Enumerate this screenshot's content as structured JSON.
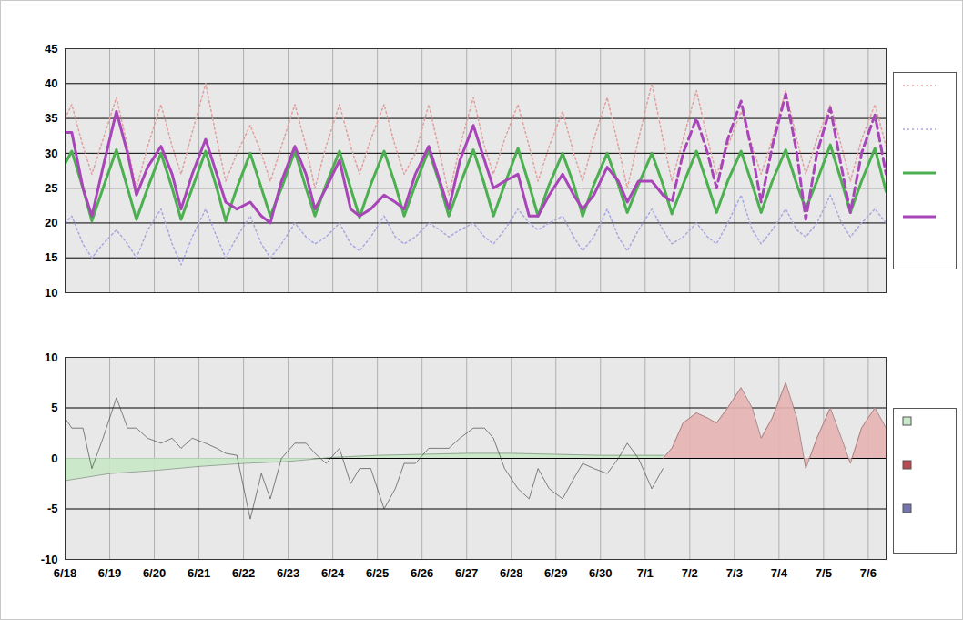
{
  "chart_data": [
    {
      "type": "line",
      "x": [
        0,
        0.15,
        0.4,
        0.6,
        0.85,
        1.15,
        1.4,
        1.6,
        1.85,
        2.15,
        2.4,
        2.6,
        2.85,
        3.15,
        3.4,
        3.6,
        3.85,
        4.15,
        4.4,
        4.6,
        4.85,
        5.15,
        5.4,
        5.6,
        5.85,
        6.15,
        6.4,
        6.6,
        6.85,
        7.15,
        7.4,
        7.6,
        7.85,
        8.15,
        8.4,
        8.6,
        8.85,
        9.15,
        9.4,
        9.6,
        9.85,
        10.15,
        10.4,
        10.6,
        10.85,
        11.15,
        11.4,
        11.6,
        11.85,
        12.15,
        12.4,
        12.6,
        12.85,
        13.15,
        13.4,
        13.6,
        13.85,
        14.15,
        14.4,
        14.6,
        14.85,
        15.15,
        15.4,
        15.6,
        15.85,
        16.15,
        16.4,
        16.6,
        16.85,
        17.15,
        17.4,
        17.6,
        17.85,
        18.15,
        18.4
      ],
      "xlim": [
        0,
        18.4
      ],
      "xticks": [
        {
          "value": 0,
          "label": "6/18"
        },
        {
          "value": 1,
          "label": "6/19"
        },
        {
          "value": 2,
          "label": "6/20"
        },
        {
          "value": 3,
          "label": "6/21"
        },
        {
          "value": 4,
          "label": "6/22"
        },
        {
          "value": 5,
          "label": "6/23"
        },
        {
          "value": 6,
          "label": "6/24"
        },
        {
          "value": 7,
          "label": "6/25"
        },
        {
          "value": 8,
          "label": "6/26"
        },
        {
          "value": 9,
          "label": "6/27"
        },
        {
          "value": 10,
          "label": "6/28"
        },
        {
          "value": 11,
          "label": "6/29"
        },
        {
          "value": 12,
          "label": "6/30"
        },
        {
          "value": 13,
          "label": "7/1"
        },
        {
          "value": 14,
          "label": "7/2"
        },
        {
          "value": 15,
          "label": "7/3"
        },
        {
          "value": 16,
          "label": "7/4"
        },
        {
          "value": 17,
          "label": "7/5"
        },
        {
          "value": 18,
          "label": "7/6"
        }
      ],
      "ylim": [
        10,
        45
      ],
      "yticks": [
        10,
        15,
        20,
        25,
        30,
        35,
        40,
        45
      ],
      "grid": true,
      "legend": "right",
      "tick_labels": "y",
      "series": [
        {
          "color": "#e0a0a0",
          "line_style": "dotted",
          "values": [
            35,
            37,
            31,
            27,
            32,
            38,
            31,
            25,
            31,
            37,
            31,
            27,
            33,
            40,
            32,
            26,
            30,
            34,
            30,
            26,
            31,
            37,
            31,
            25,
            31,
            37,
            31,
            27,
            32,
            37,
            31,
            27,
            30,
            37,
            30,
            24,
            31,
            38,
            31,
            27,
            32,
            37,
            31,
            26,
            31,
            36,
            30,
            26,
            32,
            38,
            31,
            25,
            32,
            40,
            32,
            26,
            32,
            39,
            32,
            27,
            31,
            36,
            31,
            27,
            32,
            39,
            32,
            27,
            32,
            37,
            31,
            26,
            32,
            37,
            31
          ]
        },
        {
          "color": "#a8a8e0",
          "line_style": "dotted",
          "values": [
            20,
            21,
            17,
            15,
            17,
            19,
            17,
            15,
            19,
            22,
            17,
            14,
            18,
            22,
            18,
            15,
            18,
            21,
            17,
            15,
            17,
            20,
            18,
            17,
            18,
            20,
            17,
            16,
            18,
            21,
            18,
            17,
            18,
            20,
            19,
            18,
            19,
            20,
            18,
            17,
            19,
            22,
            20,
            19,
            20,
            21,
            18,
            16,
            18,
            22,
            18,
            16,
            19,
            22,
            19,
            17,
            18,
            20,
            18,
            17,
            20,
            24,
            19,
            17,
            19,
            22,
            19,
            18,
            20,
            24,
            20,
            18,
            20,
            22,
            20
          ]
        },
        {
          "color": "#4caf50",
          "line_style": "solid",
          "values": [
            28.5,
            30.3,
            25,
            20.3,
            25,
            30.5,
            25,
            20.5,
            25,
            30,
            25,
            20.5,
            25,
            30.3,
            25,
            20.3,
            25,
            30,
            25,
            21,
            25,
            30.3,
            25,
            21,
            25.5,
            30.3,
            25,
            20.8,
            25.5,
            30.3,
            25.5,
            21,
            25.5,
            30.5,
            25.5,
            21,
            25.5,
            30.5,
            25.5,
            21,
            25.5,
            30.7,
            25.5,
            21,
            25.5,
            30,
            25.5,
            21,
            25.5,
            30,
            25.5,
            21.5,
            25.5,
            30,
            25.5,
            21.3,
            25.5,
            30.3,
            25.5,
            21.5,
            26,
            30.3,
            25.5,
            21.5,
            26,
            30.5,
            25.5,
            22,
            26,
            31.2,
            26,
            21.5,
            26,
            30.7,
            24.5
          ]
        },
        {
          "color": "#a845b8",
          "line_style": "solid",
          "values": [
            33,
            33,
            25,
            21,
            28,
            36,
            30,
            24,
            28,
            31,
            27,
            22,
            27,
            32,
            27,
            23,
            22,
            23,
            21,
            20,
            26,
            31,
            27,
            22,
            25,
            29,
            22,
            21,
            22,
            24,
            23,
            22,
            27,
            31,
            26,
            22,
            29,
            34,
            29,
            25,
            26,
            27,
            21,
            21,
            24,
            27,
            24,
            22,
            24,
            28,
            26,
            23,
            26,
            26,
            24,
            null,
            null,
            null,
            null,
            null,
            null,
            null,
            null,
            null,
            null,
            null,
            null,
            null,
            null,
            null,
            null,
            null,
            null,
            null,
            null
          ]
        },
        {
          "color": "#a845b8",
          "line_style": "dashed",
          "values": [
            null,
            null,
            null,
            null,
            null,
            null,
            null,
            null,
            null,
            null,
            null,
            null,
            null,
            null,
            null,
            null,
            null,
            null,
            null,
            null,
            null,
            null,
            null,
            null,
            null,
            null,
            null,
            null,
            null,
            null,
            null,
            null,
            null,
            null,
            null,
            null,
            null,
            null,
            null,
            null,
            null,
            null,
            null,
            null,
            null,
            null,
            null,
            null,
            null,
            null,
            null,
            null,
            null,
            null,
            24,
            23,
            30,
            35,
            30,
            25,
            32,
            37.5,
            30,
            23,
            31,
            38.5,
            30,
            20.5,
            30,
            36.5,
            28,
            21.5,
            30,
            35.5,
            27
          ]
        }
      ]
    },
    {
      "type": "area",
      "x": [
        0,
        0.15,
        0.4,
        0.6,
        0.85,
        1.15,
        1.4,
        1.6,
        1.85,
        2.15,
        2.4,
        2.6,
        2.85,
        3.15,
        3.4,
        3.6,
        3.85,
        4.15,
        4.4,
        4.6,
        4.85,
        5.15,
        5.4,
        5.6,
        5.85,
        6.15,
        6.4,
        6.6,
        6.85,
        7.15,
        7.4,
        7.6,
        7.85,
        8.15,
        8.4,
        8.6,
        8.85,
        9.15,
        9.4,
        9.6,
        9.85,
        10.15,
        10.4,
        10.6,
        10.85,
        11.15,
        11.4,
        11.6,
        11.85,
        12.15,
        12.4,
        12.6,
        12.85,
        13.15,
        13.4,
        13.6,
        13.85,
        14.15,
        14.4,
        14.6,
        14.85,
        15.15,
        15.4,
        15.6,
        15.85,
        16.15,
        16.4,
        16.6,
        16.85,
        17.15,
        17.4,
        17.6,
        17.85,
        18.15,
        18.4
      ],
      "xlim": [
        0,
        18.4
      ],
      "xticks": [
        {
          "value": 0,
          "label": "6/18"
        },
        {
          "value": 1,
          "label": "6/19"
        },
        {
          "value": 2,
          "label": "6/20"
        },
        {
          "value": 3,
          "label": "6/21"
        },
        {
          "value": 4,
          "label": "6/22"
        },
        {
          "value": 5,
          "label": "6/23"
        },
        {
          "value": 6,
          "label": "6/24"
        },
        {
          "value": 7,
          "label": "6/25"
        },
        {
          "value": 8,
          "label": "6/26"
        },
        {
          "value": 9,
          "label": "6/27"
        },
        {
          "value": 10,
          "label": "6/28"
        },
        {
          "value": 11,
          "label": "6/29"
        },
        {
          "value": 12,
          "label": "6/30"
        },
        {
          "value": 13,
          "label": "7/1"
        },
        {
          "value": 14,
          "label": "7/2"
        },
        {
          "value": 15,
          "label": "7/3"
        },
        {
          "value": 16,
          "label": "7/4"
        },
        {
          "value": 17,
          "label": "7/5"
        },
        {
          "value": 18,
          "label": "7/6"
        }
      ],
      "ylim": [
        -10,
        10
      ],
      "yticks": [
        -10,
        -5,
        0,
        5,
        10
      ],
      "grid": true,
      "legend": "right",
      "series": [
        {
          "color": "#c8e8c8",
          "x": [
            0,
            1,
            2,
            3,
            4,
            5,
            6,
            7,
            8,
            9,
            10,
            11,
            12,
            13,
            13.4
          ],
          "values": [
            -2.2,
            -1.5,
            -1.2,
            -0.8,
            -0.5,
            -0.3,
            0.1,
            0.3,
            0.4,
            0.5,
            0.5,
            0.4,
            0.3,
            0.3,
            0.3
          ]
        },
        {
          "colors": [
            "#bb4a50",
            "#7474b0"
          ],
          "values": [
            4,
            3,
            3,
            -1,
            2,
            6,
            3,
            3,
            2,
            1.5,
            2,
            1,
            2,
            1.5,
            1,
            0.5,
            0.3,
            -6,
            -1.5,
            -4,
            0,
            1.5,
            1.5,
            0.5,
            -0.5,
            1,
            -2.5,
            -1,
            -1,
            -5,
            -3,
            -0.5,
            -0.5,
            1,
            1,
            1,
            2,
            3,
            3,
            2,
            -1,
            -3,
            -4,
            -1,
            -3,
            -4,
            -2,
            -0.5,
            -1,
            -1.5,
            0,
            1.5,
            0,
            -3,
            -1,
            null,
            null,
            null,
            null,
            null,
            null,
            null,
            null,
            null,
            null,
            null,
            null,
            null,
            null,
            null,
            null,
            null,
            null,
            null,
            null
          ]
        },
        {
          "color": "#e7b3b3",
          "values": [
            null,
            null,
            null,
            null,
            null,
            null,
            null,
            null,
            null,
            null,
            null,
            null,
            null,
            null,
            null,
            null,
            null,
            null,
            null,
            null,
            null,
            null,
            null,
            null,
            null,
            null,
            null,
            null,
            null,
            null,
            null,
            null,
            null,
            null,
            null,
            null,
            null,
            null,
            null,
            null,
            null,
            null,
            null,
            null,
            null,
            null,
            null,
            null,
            null,
            null,
            null,
            null,
            null,
            null,
            0,
            1,
            3.5,
            4.5,
            4,
            3.5,
            5,
            7,
            5,
            2,
            4,
            7.5,
            4,
            -1,
            2,
            5,
            2,
            -0.5,
            3,
            5,
            3
          ]
        }
      ]
    }
  ]
}
